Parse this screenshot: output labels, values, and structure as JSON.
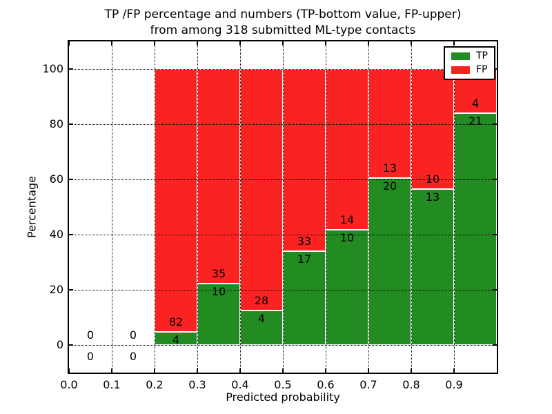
{
  "title": {
    "line1": "TP /FP percentage and numbers (TP-bottom value, FP-upper)",
    "line2": "from among 318 submitted ML-type contacts"
  },
  "axes": {
    "xlabel": "Predicted probability",
    "ylabel": "Percentage",
    "xticks": [
      "0.0",
      "0.1",
      "0.2",
      "0.3",
      "0.4",
      "0.5",
      "0.6",
      "0.7",
      "0.8",
      "0.9"
    ],
    "yticks": [
      0,
      20,
      40,
      60,
      80,
      100
    ],
    "xlim": [
      0,
      1
    ],
    "ylim": [
      -10,
      110
    ],
    "grid": "dotted"
  },
  "legend": [
    {
      "label": "TP",
      "color": "#228b22"
    },
    {
      "label": "FP",
      "color": "#fb2222"
    }
  ],
  "colors": {
    "tp": "#228b22",
    "fp": "#fb2222"
  },
  "chart_data": {
    "type": "bar",
    "stacked": true,
    "normalized_to": 100,
    "title": "TP /FP percentage and numbers (TP-bottom value, FP-upper) from among 318 submitted ML-type contacts",
    "xlabel": "Predicted probability",
    "ylabel": "Percentage",
    "total_contacts": 318,
    "bin_width": 0.1,
    "legend_position": "upper right",
    "bins": [
      {
        "start": 0.0,
        "tp": 0,
        "fp": 0
      },
      {
        "start": 0.1,
        "tp": 0,
        "fp": 0
      },
      {
        "start": 0.2,
        "tp": 4,
        "fp": 82
      },
      {
        "start": 0.3,
        "tp": 10,
        "fp": 35
      },
      {
        "start": 0.4,
        "tp": 4,
        "fp": 28
      },
      {
        "start": 0.5,
        "tp": 17,
        "fp": 33
      },
      {
        "start": 0.6,
        "tp": 10,
        "fp": 14
      },
      {
        "start": 0.7,
        "tp": 20,
        "fp": 13
      },
      {
        "start": 0.8,
        "tp": 13,
        "fp": 10
      },
      {
        "start": 0.9,
        "tp": 21,
        "fp": 4
      }
    ]
  }
}
